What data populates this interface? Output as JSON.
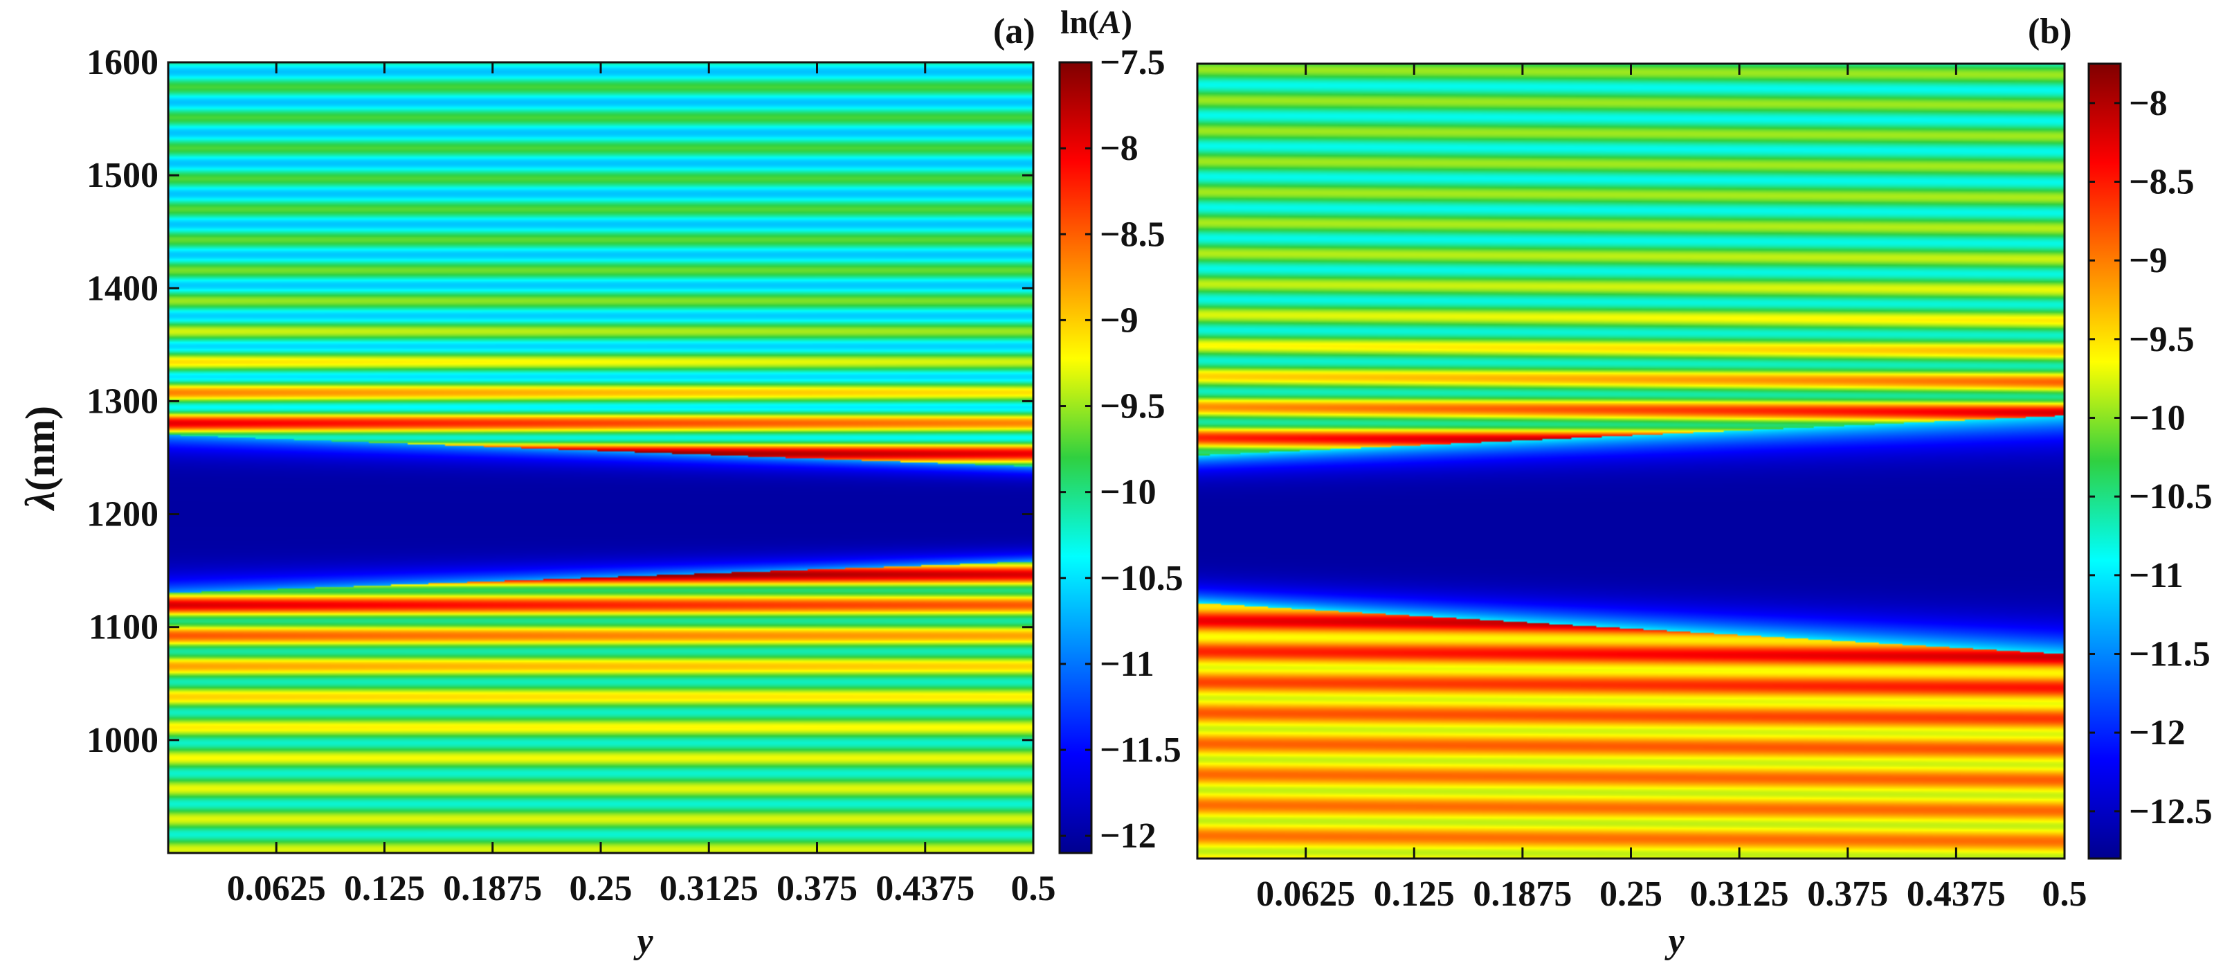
{
  "chart_data": [
    {
      "type": "heatmap",
      "panel_label": "(a)",
      "xlabel": "y",
      "ylabel_symbol": "λ",
      "ylabel_unit": "(nm)",
      "xlim": [
        0,
        0.5
      ],
      "ylim": [
        900,
        1600
      ],
      "x_ticks": [
        0.0625,
        0.125,
        0.1875,
        0.25,
        0.3125,
        0.375,
        0.4375,
        0.5
      ],
      "x_tick_labels": [
        "0.0625",
        "0.125",
        "0.1875",
        "0.25",
        "0.3125",
        "0.375",
        "0.4375",
        "0.5"
      ],
      "y_ticks": [
        1000,
        1100,
        1200,
        1300,
        1400,
        1500,
        1600
      ],
      "y_tick_labels": [
        "1000",
        "1100",
        "1200",
        "1300",
        "1400",
        "1500",
        "1600"
      ],
      "colorbar": {
        "title_prefix": "ln(",
        "title_var": "A",
        "title_suffix": ")",
        "range": [
          -12.1,
          -7.5
        ],
        "ticks": [
          -7.5,
          -8,
          -8.5,
          -9,
          -9.5,
          -10,
          -10.5,
          -11,
          -11.5,
          -12
        ],
        "tick_labels": [
          "−7.5",
          "−8",
          "−8.5",
          "−9",
          "−9.5",
          "−10",
          "−10.5",
          "−11",
          "−11.5",
          "−12"
        ]
      },
      "features": {
        "gap_center_nm": 1200,
        "gap_half_width_start_nm": 70,
        "gap_half_width_end_nm": 42,
        "gap_min_value": -12.0,
        "upper_band_value": -10.2,
        "lower_band_value": -9.8,
        "edge_peak_value": -7.8
      }
    },
    {
      "type": "heatmap",
      "panel_label": "(b)",
      "xlabel": "y",
      "xlim": [
        0,
        0.5
      ],
      "ylim": [
        900,
        1600
      ],
      "x_ticks": [
        0.0625,
        0.125,
        0.1875,
        0.25,
        0.3125,
        0.375,
        0.4375,
        0.5
      ],
      "x_tick_labels": [
        "0.0625",
        "0.125",
        "0.1875",
        "0.25",
        "0.3125",
        "0.375",
        "0.4375",
        "0.5"
      ],
      "colorbar": {
        "range": [
          -12.8,
          -7.75
        ],
        "ticks": [
          -8,
          -8.5,
          -9,
          -9.5,
          -10,
          -10.5,
          -11,
          -11.5,
          -12,
          -12.5
        ],
        "tick_labels": [
          "−8",
          "−8.5",
          "−9",
          "−9.5",
          "−10",
          "−10.5",
          "−11",
          "−11.5",
          "−12",
          "−12.5"
        ]
      },
      "features": {
        "gap_center_start_nm": 1190,
        "gap_center_end_nm": 1185,
        "gap_half_width_start_nm": 65,
        "gap_half_width_end_nm": 105,
        "gap_min_value": -12.7,
        "upper_band_value": -10.4,
        "lower_band_value": -9.4,
        "edge_peak_value": -8.3
      }
    }
  ]
}
